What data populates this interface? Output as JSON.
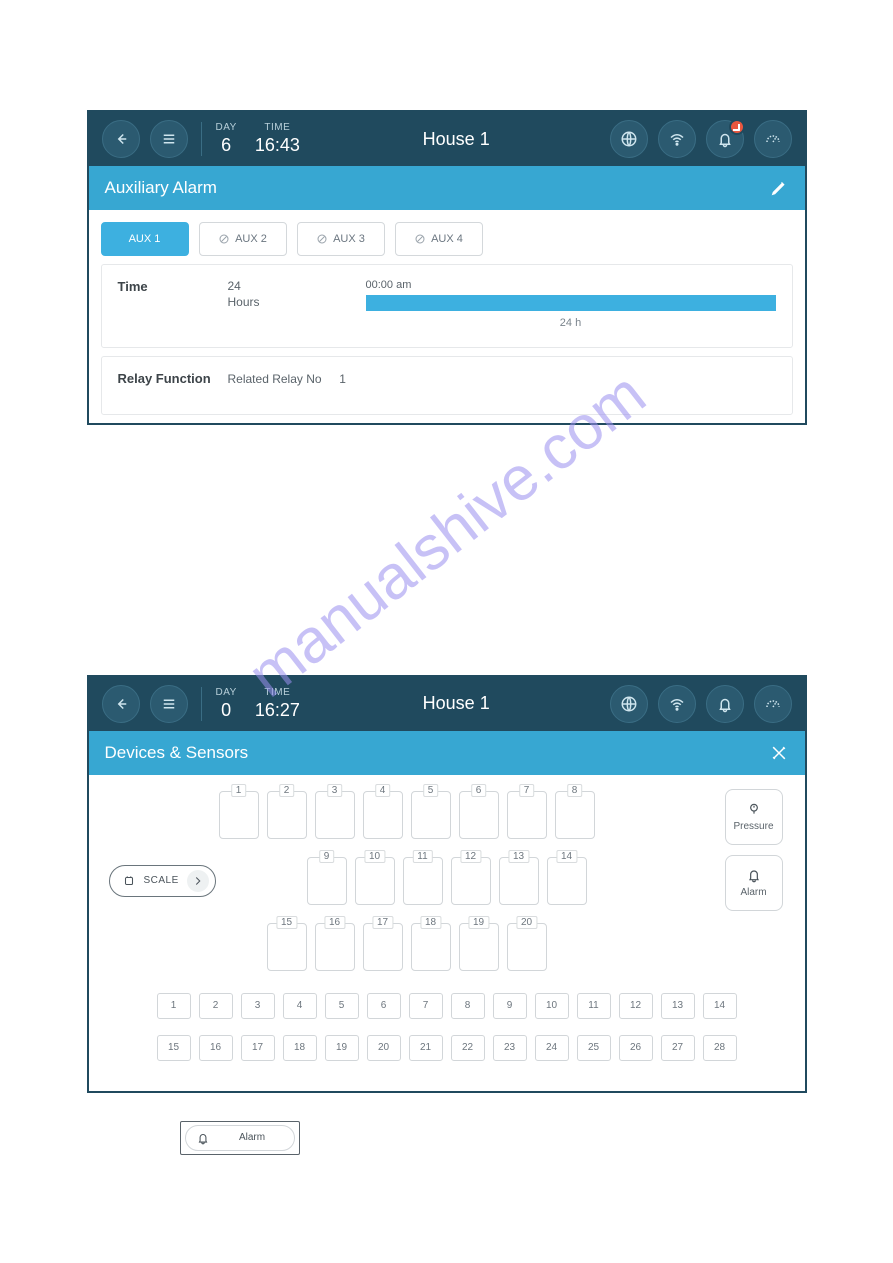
{
  "watermark": "manualshive.com",
  "panel1": {
    "header": {
      "day_label": "DAY",
      "day_value": "6",
      "time_label": "TIME",
      "time_value": "16:43",
      "title": "House 1"
    },
    "subheader": "Auxiliary Alarm",
    "tabs": [
      {
        "label": "AUX 1",
        "active": true
      },
      {
        "label": "AUX 2",
        "active": false
      },
      {
        "label": "AUX 3",
        "active": false
      },
      {
        "label": "AUX 4",
        "active": false
      }
    ],
    "time_card": {
      "label": "Time",
      "sub_line1": "24",
      "sub_line2": "Hours",
      "start": "00:00 am",
      "span": "24 h"
    },
    "relay_card": {
      "label": "Relay Function",
      "field": "Related Relay No",
      "value": "1"
    },
    "bell_has_alert": true
  },
  "panel2": {
    "header": {
      "day_label": "DAY",
      "day_value": "0",
      "time_label": "TIME",
      "time_value": "16:27",
      "title": "House 1"
    },
    "subheader": "Devices & Sensors",
    "side_pressure": "Pressure",
    "side_alarm": "Alarm",
    "scale_label": "SCALE",
    "row1": [
      "1",
      "2",
      "3",
      "4",
      "5",
      "6",
      "7",
      "8"
    ],
    "row2": [
      "9",
      "10",
      "11",
      "12",
      "13",
      "14"
    ],
    "row3": [
      "15",
      "16",
      "17",
      "18",
      "19",
      "20"
    ],
    "small1": [
      "1",
      "2",
      "3",
      "4",
      "5",
      "6",
      "7",
      "8",
      "9",
      "10",
      "11",
      "12",
      "13",
      "14"
    ],
    "small2": [
      "15",
      "16",
      "17",
      "18",
      "19",
      "20",
      "21",
      "22",
      "23",
      "24",
      "25",
      "26",
      "27",
      "28"
    ],
    "bell_has_alert": false
  },
  "bottom_chip": "Alarm",
  "colors": {
    "topbar": "#204a5e",
    "subhead": "#37a7d2",
    "accent": "#3db0e0",
    "alert": "#e9573f"
  }
}
